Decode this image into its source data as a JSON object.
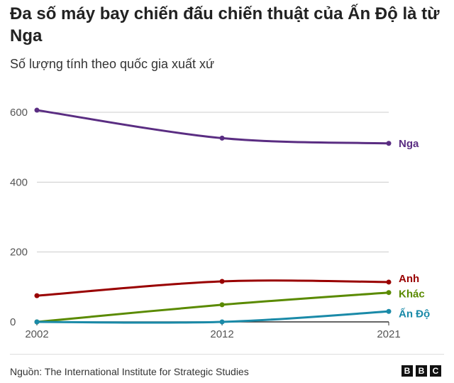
{
  "chart_data": {
    "type": "line",
    "title": "Đa số máy bay chiến đấu chiến thuật của Ấn Độ là từ Nga",
    "subtitle": "Số lượng tính theo quốc gia xuất xứ",
    "x": [
      2002,
      2012,
      2021
    ],
    "x_tick_labels": [
      "2002",
      "2012",
      "2021"
    ],
    "ylim": [
      0,
      600
    ],
    "y_ticks": [
      0,
      200,
      400,
      600
    ],
    "grid": true,
    "legend": "inline-right",
    "series": [
      {
        "name": "Nga",
        "values": [
          606,
          526,
          511
        ],
        "color": "#5a2d82"
      },
      {
        "name": "Anh",
        "values": [
          75,
          116,
          114
        ],
        "color": "#990000"
      },
      {
        "name": "Khác",
        "values": [
          0,
          49,
          84
        ],
        "color": "#5a8a00"
      },
      {
        "name": "Ấn Độ",
        "values": [
          0,
          0,
          30
        ],
        "color": "#1a8aa8"
      }
    ]
  },
  "footer": {
    "source": "Nguồn: The International Institute for Strategic Studies",
    "logo_letters": [
      "B",
      "B",
      "C"
    ]
  }
}
